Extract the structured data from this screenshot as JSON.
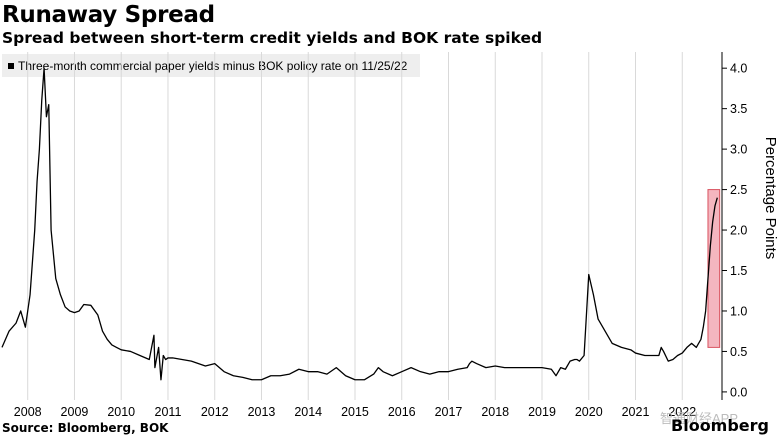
{
  "title": "Runaway Spread",
  "subtitle": "Spread between short-term credit yields and BOK rate spiked",
  "legend_label": "Three-month commercial paper yields minus BOK policy rate on 11/25/22",
  "source": "Source: Bloomberg, BOK",
  "brand": "Bloomberg",
  "watermark": "智通财经APP",
  "chart_data": {
    "type": "line",
    "ylabel": "Percentage Points",
    "ylim": [
      -0.1,
      4.2
    ],
    "yticks": [
      0.0,
      0.5,
      1.0,
      1.5,
      2.0,
      2.5,
      3.0,
      3.5,
      4.0
    ],
    "ytick_labels": [
      "0.0",
      "0.5",
      "1.0",
      "1.5",
      "2.0",
      "2.5",
      "3.0",
      "3.5",
      "4.0"
    ],
    "x_tick_labels": [
      "2008",
      "2009",
      "2010",
      "2011",
      "2012",
      "2013",
      "2014",
      "2015",
      "2016",
      "2017",
      "2018",
      "2019",
      "2020",
      "2021",
      "2022"
    ],
    "x_tick_positions": [
      2008,
      2009,
      2010,
      2011,
      2012,
      2013,
      2014,
      2015,
      2016,
      2017,
      2018,
      2019,
      2020,
      2021,
      2022
    ],
    "xlim": [
      2007.45,
      2022.85
    ],
    "grid": "vertical",
    "legend_position": "top-left",
    "line_color": "#000000",
    "highlight": {
      "x_start": 2022.55,
      "x_end": 2022.8,
      "y_start": 0.55,
      "y_end": 2.5,
      "color": "#f4b6bf",
      "border": "#d9535f"
    },
    "series": [
      {
        "x": [
          2007.45,
          2007.6,
          2007.75,
          2007.85,
          2007.95,
          2008.05,
          2008.15,
          2008.2,
          2008.25,
          2008.3,
          2008.35,
          2008.4,
          2008.45,
          2008.5,
          2008.6,
          2008.7,
          2008.8,
          2008.9,
          2009.0,
          2009.1,
          2009.2,
          2009.35,
          2009.5,
          2009.6,
          2009.7,
          2009.8,
          2009.9,
          2010.0,
          2010.2,
          2010.4,
          2010.6,
          2010.7,
          2010.72,
          2010.8,
          2010.85,
          2010.9,
          2010.95,
          2011.0,
          2011.05,
          2011.1,
          2011.3,
          2011.5,
          2011.8,
          2012.0,
          2012.2,
          2012.4,
          2012.6,
          2012.8,
          2013.0,
          2013.2,
          2013.4,
          2013.6,
          2013.8,
          2014.0,
          2014.2,
          2014.4,
          2014.6,
          2014.8,
          2015.0,
          2015.2,
          2015.4,
          2015.5,
          2015.6,
          2015.8,
          2016.0,
          2016.2,
          2016.4,
          2016.6,
          2016.8,
          2017.0,
          2017.2,
          2017.4,
          2017.45,
          2017.5,
          2017.6,
          2017.8,
          2018.0,
          2018.2,
          2018.4,
          2018.6,
          2018.8,
          2019.0,
          2019.2,
          2019.3,
          2019.4,
          2019.5,
          2019.6,
          2019.7,
          2019.75,
          2019.8,
          2019.9,
          2020.0,
          2020.1,
          2020.2,
          2020.35,
          2020.5,
          2020.7,
          2020.9,
          2021.0,
          2021.2,
          2021.4,
          2021.5,
          2021.55,
          2021.6,
          2021.7,
          2021.8,
          2021.9,
          2022.0,
          2022.1,
          2022.2,
          2022.3,
          2022.35,
          2022.4,
          2022.45,
          2022.5,
          2022.55,
          2022.6,
          2022.65,
          2022.7,
          2022.75
        ],
        "y": [
          0.55,
          0.75,
          0.85,
          1.0,
          0.8,
          1.2,
          2.0,
          2.6,
          3.0,
          3.6,
          4.0,
          3.4,
          3.55,
          2.0,
          1.4,
          1.2,
          1.05,
          1.0,
          0.98,
          1.0,
          1.08,
          1.07,
          0.95,
          0.75,
          0.65,
          0.58,
          0.55,
          0.52,
          0.5,
          0.45,
          0.4,
          0.7,
          0.3,
          0.55,
          0.15,
          0.45,
          0.4,
          0.42,
          0.42,
          0.42,
          0.4,
          0.38,
          0.32,
          0.35,
          0.25,
          0.2,
          0.18,
          0.15,
          0.15,
          0.2,
          0.2,
          0.22,
          0.28,
          0.25,
          0.25,
          0.22,
          0.3,
          0.2,
          0.15,
          0.15,
          0.22,
          0.3,
          0.25,
          0.2,
          0.25,
          0.3,
          0.25,
          0.22,
          0.25,
          0.25,
          0.28,
          0.3,
          0.35,
          0.38,
          0.35,
          0.3,
          0.32,
          0.3,
          0.3,
          0.3,
          0.3,
          0.3,
          0.28,
          0.2,
          0.3,
          0.28,
          0.38,
          0.4,
          0.4,
          0.38,
          0.45,
          1.45,
          1.2,
          0.9,
          0.75,
          0.6,
          0.55,
          0.52,
          0.48,
          0.45,
          0.45,
          0.45,
          0.55,
          0.5,
          0.38,
          0.4,
          0.45,
          0.48,
          0.55,
          0.6,
          0.55,
          0.6,
          0.65,
          0.8,
          1.0,
          1.4,
          1.8,
          2.1,
          2.3,
          2.4
        ]
      }
    ]
  }
}
